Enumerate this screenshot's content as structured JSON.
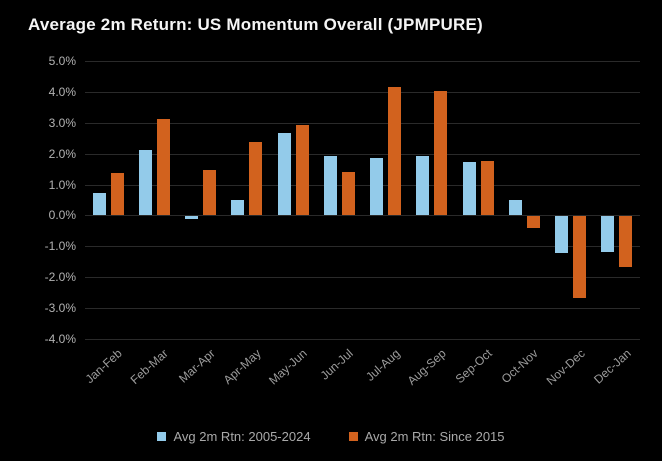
{
  "title": "Average 2m Return: US Momentum Overall (JPMPURE)",
  "colors": {
    "background": "#000000",
    "title_text": "#f5f5f5",
    "grid": "#2a2a2a",
    "axis_text": "#9c9c9c",
    "ytick_text": "#b2b2b2",
    "legend_text": "#a9a9a9",
    "series1": "#93cbea",
    "series2": "#d2621e"
  },
  "chart_data": {
    "type": "bar",
    "title": "Average 2m Return: US Momentum Overall (JPMPURE)",
    "categories": [
      "Jan-Feb",
      "Feb-Mar",
      "Mar-Apr",
      "Apr-May",
      "May-Jun",
      "Jun-Jul",
      "Jul-Aug",
      "Aug-Sep",
      "Sep-Oct",
      "Oct-Nov",
      "Nov-Dec",
      "Dec-Jan"
    ],
    "series": [
      {
        "name": "Avg 2m Rtn: 2005-2024",
        "color": "#93cbea",
        "values": [
          0.7,
          2.1,
          -0.1,
          0.5,
          2.65,
          1.9,
          1.85,
          1.9,
          1.7,
          0.5,
          -1.2,
          -1.15
        ]
      },
      {
        "name": "Avg 2m Rtn: Since 2015",
        "color": "#d2621e",
        "values": [
          1.35,
          3.1,
          1.45,
          2.35,
          2.9,
          1.4,
          4.15,
          4.0,
          1.75,
          -0.4,
          -2.65,
          -1.65
        ]
      }
    ],
    "xlabel": "",
    "ylabel": "",
    "ylim": [
      -4.0,
      5.0
    ],
    "ytick_step": 1.0,
    "ytick_labels": [
      "5.0%",
      "4.0%",
      "3.0%",
      "2.0%",
      "1.0%",
      "0.0%",
      "-1.0%",
      "-2.0%",
      "-3.0%",
      "-4.0%"
    ],
    "grid": true,
    "legend_position": "bottom"
  }
}
